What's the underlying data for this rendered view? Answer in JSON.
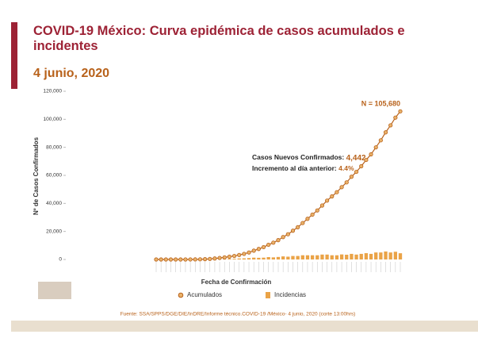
{
  "chart_data": {
    "type": "bar-line",
    "title": "COVID-19 México: Curva epidémica de casos acumulados e incidentes",
    "subtitle": "4 junio, 2020",
    "y_label": "Nº de Casos Confirmados",
    "x_label": "Fecha de Confirmación",
    "annotation_total": "N = 105,680",
    "annotation_new_label": "Casos Nuevos Confirmados: ",
    "annotation_new_value": "4,442",
    "annotation_inc_label": "Incremento al día anterior: ",
    "annotation_inc_value": "4.4%",
    "source": "Fuente: SSA/SPPS/DGE/DIE/InDRE/Informe técnico.COVID-19 /México- 4 junio, 2020 (corte 13:00hrs)",
    "ylim": [
      0,
      120000
    ],
    "yticks": [
      0,
      {
        "value": 20000,
        "label": "20,000"
      },
      {
        "value": 40000,
        "label": "40,000"
      },
      {
        "value": 60000,
        "label": "60,000"
      },
      {
        "value": 80000,
        "label": "80,000"
      },
      {
        "value": 100000,
        "label": "100,000"
      },
      {
        "value": 120000,
        "label": "120,000"
      }
    ],
    "categories": [
      null,
      null,
      null,
      null,
      null,
      null,
      null,
      null,
      null,
      null,
      null,
      null,
      null,
      null,
      null,
      null,
      null,
      null,
      null,
      null,
      null,
      null,
      null,
      null,
      null,
      null,
      null,
      null,
      null,
      null,
      null,
      null,
      null,
      null,
      null,
      null,
      null,
      null,
      null,
      null,
      null,
      null,
      null,
      null,
      null,
      null,
      null,
      null,
      null,
      null,
      null
    ],
    "series": [
      {
        "name": "Acumulados",
        "color": "#b8621b",
        "kind": "line",
        "values": [
          0,
          0,
          0,
          0,
          0,
          5,
          10,
          20,
          50,
          100,
          200,
          400,
          700,
          1100,
          1500,
          2000,
          2500,
          3200,
          4000,
          5000,
          6300,
          7500,
          8800,
          10500,
          12000,
          13800,
          16000,
          18000,
          20500,
          23000,
          26000,
          29000,
          32000,
          35000,
          38500,
          42000,
          45000,
          48000,
          51600,
          55000,
          59000,
          62500,
          66500,
          71000,
          75000,
          80000,
          85000,
          90700,
          95700,
          101200,
          105680
        ]
      },
      {
        "name": "Incidencias",
        "color": "#eaa347",
        "kind": "bar",
        "values": [
          0,
          0,
          0,
          0,
          0,
          5,
          5,
          10,
          30,
          50,
          100,
          200,
          300,
          400,
          400,
          500,
          500,
          700,
          800,
          1000,
          1300,
          1200,
          1300,
          1700,
          1500,
          1800,
          2200,
          2000,
          2500,
          2500,
          3000,
          3000,
          3000,
          3000,
          3500,
          3500,
          3000,
          3000,
          3600,
          3400,
          4000,
          3500,
          4000,
          4500,
          4000,
          5000,
          5000,
          5700,
          5000,
          5500,
          4442
        ]
      }
    ]
  }
}
